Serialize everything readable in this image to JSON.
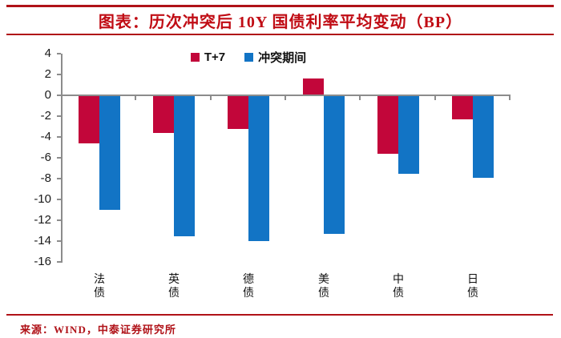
{
  "header": {
    "title": "图表：历次冲突后 10Y 国债利率平均变动（BP）"
  },
  "footer": {
    "source": "来源：WIND，中泰证券研究所"
  },
  "colors": {
    "brand_red": "#b01218",
    "title_red": "#c00c14",
    "bar_red": "#c2063a",
    "bar_blue": "#1274c5",
    "axis_grey": "#8c8c8c"
  },
  "chart_data": {
    "type": "bar",
    "title": "图表：历次冲突后 10Y 国债利率平均变动（BP）",
    "categories": [
      "法债",
      "英债",
      "德债",
      "美债",
      "中债",
      "日债"
    ],
    "series": [
      {
        "name": "T+7",
        "color": "#c2063a",
        "values": [
          -4.6,
          -3.6,
          -3.2,
          1.6,
          -5.6,
          -2.3
        ]
      },
      {
        "name": "冲突期间",
        "color": "#1274c5",
        "values": [
          -11.0,
          -13.5,
          -14.0,
          -13.3,
          -7.5,
          -7.9
        ]
      }
    ],
    "xlabel": "",
    "ylabel": "",
    "unit": "BP",
    "ylim": [
      -16,
      4
    ],
    "y_ticks": [
      4,
      2,
      0,
      -2,
      -4,
      -6,
      -8,
      -10,
      -12,
      -14,
      -16
    ],
    "grid": false,
    "legend_position": "top-center"
  }
}
